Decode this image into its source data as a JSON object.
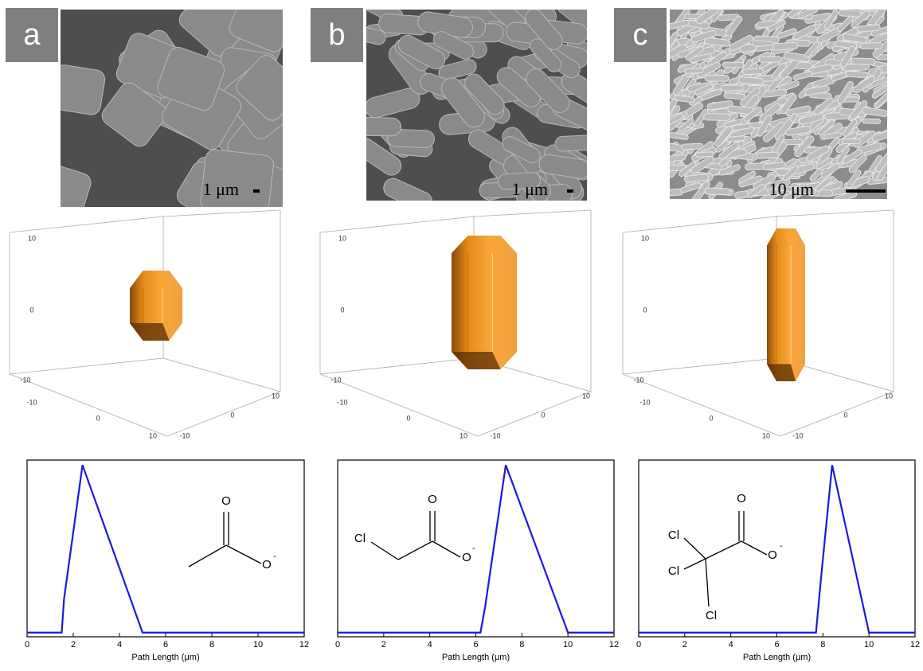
{
  "chart_data": [
    {
      "type": "line",
      "x": [
        0,
        1.5,
        1.6,
        2.4,
        5.0,
        5.1,
        12
      ],
      "series": [
        {
          "color": "#1a1adc",
          "values": [
            0,
            0,
            0.2,
            1,
            0,
            0,
            0
          ]
        }
      ],
      "xlim": [
        0,
        12
      ],
      "ylim": [
        -0.025,
        1.03
      ],
      "xticks": [
        0,
        2,
        4,
        6,
        8,
        10,
        12
      ],
      "xlabel": "Path Length (μm)"
    },
    {
      "type": "line",
      "x": [
        0,
        6.2,
        6.4,
        7.3,
        10.0,
        10.1,
        12
      ],
      "series": [
        {
          "color": "#1a1adc",
          "values": [
            0,
            0,
            0.15,
            1,
            0,
            0,
            0
          ]
        }
      ],
      "xlim": [
        0,
        12
      ],
      "ylim": [
        -0.025,
        1.03
      ],
      "xticks": [
        0,
        2,
        4,
        6,
        8,
        10,
        12
      ],
      "xlabel": "Path Length (μm)"
    },
    {
      "type": "line",
      "x": [
        0,
        7.7,
        7.9,
        8.4,
        10.0,
        10.1,
        12
      ],
      "series": [
        {
          "color": "#1a1adc",
          "values": [
            0,
            0,
            0.3,
            1,
            0,
            0,
            0
          ]
        }
      ],
      "xlim": [
        0,
        12
      ],
      "ylim": [
        -0.025,
        1.03
      ],
      "xticks": [
        0,
        2,
        4,
        6,
        8,
        10,
        12
      ],
      "xlabel": "Path Length (μm)"
    }
  ],
  "panels": [
    {
      "label": "a",
      "scale_bar": "1 μm",
      "box_ticks": {
        "z": [
          10,
          0,
          -10
        ],
        "x": [
          -10,
          0,
          10
        ],
        "y": [
          10,
          0,
          -10
        ]
      },
      "molecule": [
        "O",
        "O",
        "-"
      ]
    },
    {
      "label": "b",
      "scale_bar": "1 μm",
      "box_ticks": {
        "z": [
          10,
          0,
          -10
        ],
        "x": [
          -10,
          0,
          10
        ],
        "y": [
          10,
          0,
          -10
        ]
      },
      "molecule": [
        "Cl",
        "O",
        "O",
        "-"
      ]
    },
    {
      "label": "c",
      "scale_bar": "10 μm",
      "box_ticks": {
        "z": [
          10,
          0,
          -10
        ],
        "x": [
          -10,
          0,
          10
        ],
        "y": [
          10,
          0,
          -10
        ]
      },
      "molecule": [
        "Cl",
        "Cl",
        "Cl",
        "O",
        "O",
        "-"
      ]
    }
  ]
}
